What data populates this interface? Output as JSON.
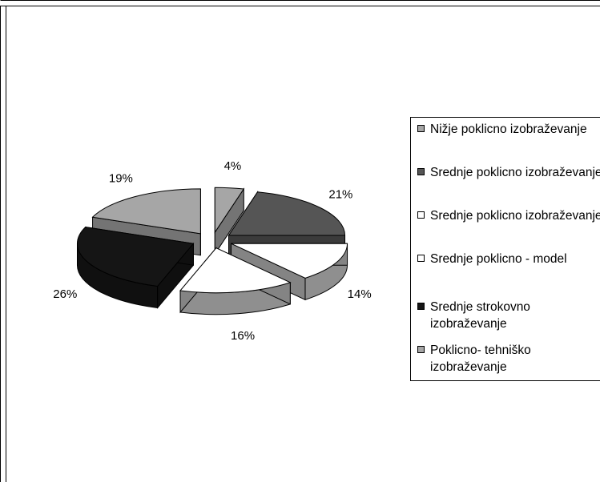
{
  "chart_data": {
    "type": "pie",
    "style": "3d-exploded",
    "title": "",
    "slices": [
      {
        "label": "Nižje poklicno izobraževanje",
        "value": 4,
        "value_label": "4%",
        "color": "#a6a6a6"
      },
      {
        "label": "Srednje poklicno izobraževanje",
        "value": 21,
        "value_label": "21%",
        "color": "#555555"
      },
      {
        "label": "Srednje poklicno izobraževanje",
        "value": 14,
        "value_label": "14%",
        "color": "#ffffff"
      },
      {
        "label": "Srednje poklicno - model",
        "value": 16,
        "value_label": "16%",
        "color": "#ffffff"
      },
      {
        "label": "Srednje strokovno izobraževanje",
        "value": 26,
        "value_label": "26%",
        "color": "#151515"
      },
      {
        "label": "Poklicno- tehniško izobraževanje",
        "value": 19,
        "value_label": "19%",
        "color": "#a6a6a6"
      }
    ],
    "legend_position": "right",
    "legend": [
      {
        "text": "Nižje poklicno izobraževanje",
        "color": "#a6a6a6"
      },
      {
        "text": "Srednje poklicno izobraževanje",
        "color": "#555555"
      },
      {
        "text": "Srednje poklicno izobraževanje",
        "color": "#ffffff"
      },
      {
        "text": "Srednje poklicno - model",
        "color": "#ffffff"
      },
      {
        "text": "Srednje strokovno izobraževanje",
        "color": "#151515"
      },
      {
        "text": "Poklicno- tehniško izobraževanje",
        "color": "#a6a6a6"
      }
    ]
  }
}
